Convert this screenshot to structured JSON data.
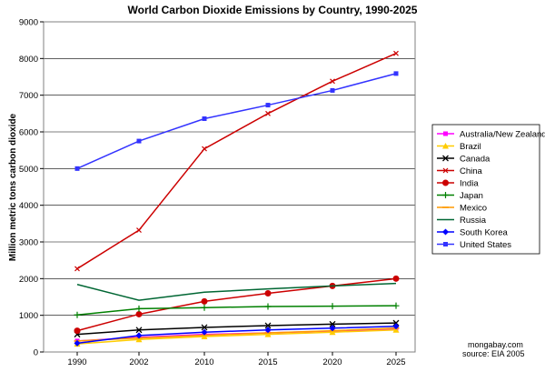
{
  "chart_data": {
    "type": "line",
    "title": "World Carbon Dioxide Emissions by Country, 1990-2025",
    "xlabel": "",
    "ylabel": "Million metric tons carbon dioxide",
    "x": [
      "1990",
      "2002",
      "2010",
      "2015",
      "2020",
      "2025"
    ],
    "ylim": [
      0,
      9000
    ],
    "yticks": [
      0,
      1000,
      2000,
      3000,
      4000,
      5000,
      6000,
      7000,
      8000,
      9000
    ],
    "grid": "horizontal",
    "legend_position": "right",
    "series": [
      {
        "name": "Australia/New Zealand",
        "color": "#ff00ff",
        "marker": "square",
        "values": [
          300,
          400,
          480,
          520,
          570,
          620
        ]
      },
      {
        "name": "Brazil",
        "color": "#ffcc00",
        "marker": "triangle",
        "values": [
          220,
          340,
          420,
          480,
          540,
          600
        ]
      },
      {
        "name": "Canada",
        "color": "#000000",
        "marker": "cross",
        "values": [
          480,
          600,
          670,
          720,
          760,
          790
        ]
      },
      {
        "name": "China",
        "color": "#cc0000",
        "marker": "x",
        "values": [
          2270,
          3320,
          5540,
          6500,
          7380,
          8140
        ]
      },
      {
        "name": "India",
        "color": "#cc0000",
        "marker": "circle",
        "values": [
          580,
          1030,
          1380,
          1600,
          1800,
          2000
        ]
      },
      {
        "name": "Japan",
        "color": "#008000",
        "marker": "plus",
        "values": [
          1010,
          1180,
          1210,
          1240,
          1250,
          1260
        ]
      },
      {
        "name": "Mexico",
        "color": "#ff9900",
        "marker": "dash",
        "values": [
          300,
          380,
          460,
          520,
          580,
          650
        ]
      },
      {
        "name": "Russia",
        "color": "#006633",
        "marker": "none",
        "values": [
          1840,
          1410,
          1630,
          1720,
          1800,
          1870
        ]
      },
      {
        "name": "South Korea",
        "color": "#0000ff",
        "marker": "diamond",
        "values": [
          240,
          450,
          540,
          600,
          650,
          700
        ]
      },
      {
        "name": "United States",
        "color": "#3333ff",
        "marker": "square",
        "values": [
          5000,
          5750,
          6360,
          6730,
          7130,
          7590
        ]
      }
    ]
  },
  "credit": {
    "site": "mongabay.com",
    "source": "source: EIA 2005"
  }
}
